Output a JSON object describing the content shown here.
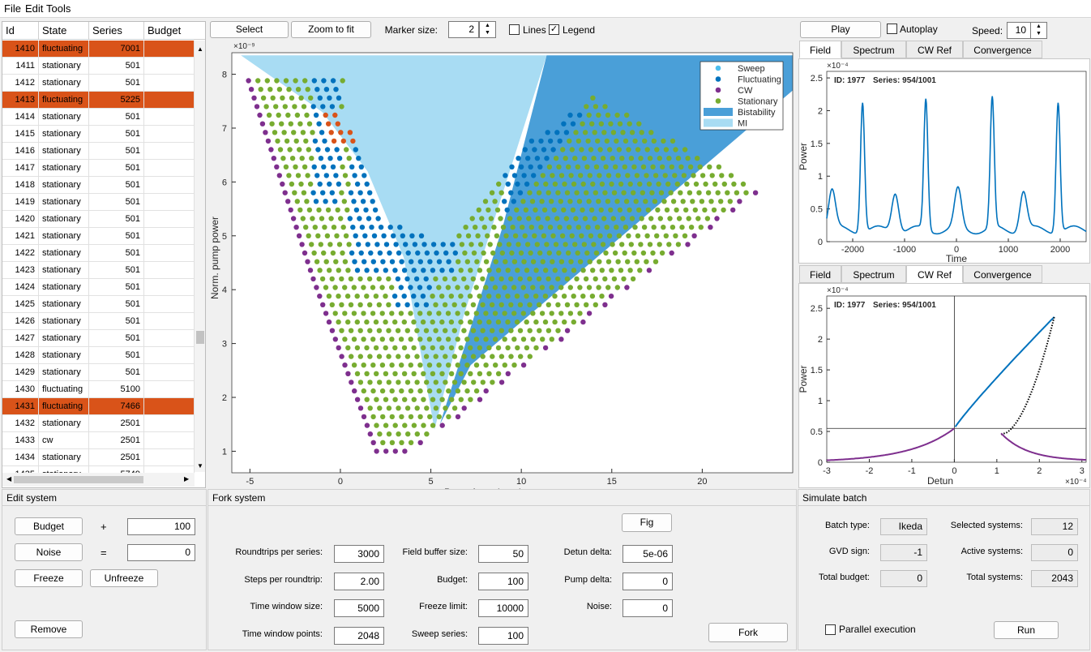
{
  "menu": [
    "File",
    "Edit",
    "Tools"
  ],
  "table": {
    "columns": [
      "Id",
      "State",
      "Series",
      "Budget"
    ],
    "rows": [
      {
        "id": "1410",
        "state": "fluctuating",
        "series": "7001",
        "highlight": true
      },
      {
        "id": "1411",
        "state": "stationary",
        "series": "501",
        "highlight": false
      },
      {
        "id": "1412",
        "state": "stationary",
        "series": "501",
        "highlight": false
      },
      {
        "id": "1413",
        "state": "fluctuating",
        "series": "5225",
        "highlight": true
      },
      {
        "id": "1414",
        "state": "stationary",
        "series": "501",
        "highlight": false
      },
      {
        "id": "1415",
        "state": "stationary",
        "series": "501",
        "highlight": false
      },
      {
        "id": "1416",
        "state": "stationary",
        "series": "501",
        "highlight": false
      },
      {
        "id": "1417",
        "state": "stationary",
        "series": "501",
        "highlight": false
      },
      {
        "id": "1418",
        "state": "stationary",
        "series": "501",
        "highlight": false
      },
      {
        "id": "1419",
        "state": "stationary",
        "series": "501",
        "highlight": false
      },
      {
        "id": "1420",
        "state": "stationary",
        "series": "501",
        "highlight": false
      },
      {
        "id": "1421",
        "state": "stationary",
        "series": "501",
        "highlight": false
      },
      {
        "id": "1422",
        "state": "stationary",
        "series": "501",
        "highlight": false
      },
      {
        "id": "1423",
        "state": "stationary",
        "series": "501",
        "highlight": false
      },
      {
        "id": "1424",
        "state": "stationary",
        "series": "501",
        "highlight": false
      },
      {
        "id": "1425",
        "state": "stationary",
        "series": "501",
        "highlight": false
      },
      {
        "id": "1426",
        "state": "stationary",
        "series": "501",
        "highlight": false
      },
      {
        "id": "1427",
        "state": "stationary",
        "series": "501",
        "highlight": false
      },
      {
        "id": "1428",
        "state": "stationary",
        "series": "501",
        "highlight": false
      },
      {
        "id": "1429",
        "state": "stationary",
        "series": "501",
        "highlight": false
      },
      {
        "id": "1430",
        "state": "fluctuating",
        "series": "5100",
        "highlight": false
      },
      {
        "id": "1431",
        "state": "fluctuating",
        "series": "7466",
        "highlight": true
      },
      {
        "id": "1432",
        "state": "stationary",
        "series": "2501",
        "highlight": false
      },
      {
        "id": "1433",
        "state": "cw",
        "series": "2501",
        "highlight": false
      },
      {
        "id": "1434",
        "state": "stationary",
        "series": "2501",
        "highlight": false
      },
      {
        "id": "1435",
        "state": "stationary",
        "series": "5749",
        "highlight": false
      }
    ]
  },
  "toolbar": {
    "select": "Select",
    "zoom_to_fit": "Zoom to fit",
    "marker_size_label": "Marker size:",
    "marker_size": "2",
    "lines_label": "Lines",
    "lines_checked": false,
    "legend_label": "Legend",
    "legend_checked": true
  },
  "playbar": {
    "play": "Play",
    "autoplay_label": "Autoplay",
    "autoplay_checked": false,
    "speed_label": "Speed:",
    "speed": "10"
  },
  "tabs_top": [
    "Field",
    "Spectrum",
    "CW Ref",
    "Convergence"
  ],
  "tabs_top_active": "Field",
  "tabs_bottom": [
    "Field",
    "Spectrum",
    "CW Ref",
    "Convergence"
  ],
  "tabs_bottom_active": "CW Ref",
  "colors": {
    "highlight": "#d95319",
    "sweep": "#4dbeee",
    "fluctuating": "#0072bd",
    "cw": "#7e2f8e",
    "stationary": "#77ac30",
    "bistability": "#4a9fd8",
    "mi": "#a8dcf3",
    "line": "#0072bd",
    "cw_curve": "#7e2f8e"
  },
  "chart_data": [
    {
      "type": "scatter",
      "xlabel": "Pump freq. detuning",
      "ylabel": "Norm. pump power",
      "x_exponent": "×10⁻⁵",
      "y_exponent": "×10⁻⁹",
      "xlim": [
        -6,
        25
      ],
      "ylim": [
        0.6,
        8.4
      ],
      "xticks": [
        -5,
        0,
        5,
        10,
        15,
        20
      ],
      "yticks": [
        1,
        2,
        3,
        4,
        5,
        6,
        7,
        8
      ],
      "legend_position": "top-right",
      "legend": [
        "Sweep",
        "Fluctuating",
        "CW",
        "Stationary",
        "Bistability",
        "MI"
      ],
      "regions": {
        "mi": [
          [
            -5.5,
            8.35
          ],
          [
            11.4,
            8.35
          ],
          [
            6.8,
            3.5
          ],
          [
            5.2,
            1.4
          ],
          [
            3.5,
            4.6
          ],
          [
            1.5,
            6.2
          ],
          [
            -1,
            7.3
          ],
          [
            -5.5,
            8.35
          ]
        ],
        "bistability": [
          [
            11.4,
            8.35
          ],
          [
            25,
            8.35
          ],
          [
            25,
            7.7
          ],
          [
            7.2,
            2.6
          ],
          [
            5.5,
            1.5
          ],
          [
            9.0,
            5.2
          ],
          [
            11.4,
            8.35
          ]
        ]
      },
      "series_summary": {
        "stationary_bounds": {
          "left_x": [
            -5,
            2
          ],
          "bottom_y": 1.0,
          "top_y": 7.9,
          "right_edge": [
            [
              2,
              1.0
            ],
            [
              23,
              5.9
            ]
          ]
        },
        "fluctuating_clusters": [
          {
            "x": [
              -1.5,
              0
            ],
            "y": [
              5.5,
              7.9
            ]
          },
          {
            "x": [
              0.5,
              6.5
            ],
            "y": [
              3.4,
              6.7
            ]
          },
          {
            "x": [
              9,
              14
            ],
            "y": [
              5.2,
              7.6
            ]
          }
        ],
        "cw_edge_left": [
          [
            -5,
            7.8
          ],
          [
            -1.5,
            4.2
          ],
          [
            2,
            1.0
          ]
        ],
        "cw_edge_right": [
          [
            4,
            1.0
          ],
          [
            23,
            5.8
          ]
        ],
        "highlight_points": [
          [
            -0.5,
            7.1
          ],
          [
            0,
            7.0
          ],
          [
            0.6,
            6.9
          ]
        ]
      }
    },
    {
      "type": "line",
      "id_label": "ID: 1977",
      "series_label": "Series: 954/1001",
      "xlabel": "Time",
      "ylabel": "Power",
      "y_exponent": "×10⁻⁴",
      "xlim": [
        -2500,
        2500
      ],
      "ylim": [
        0,
        2.6
      ],
      "xticks": [
        -2000,
        -1000,
        0,
        1000,
        2000
      ],
      "yticks": [
        0,
        0.5,
        1,
        1.5,
        2,
        2.5
      ],
      "peaks_tall": {
        "x": [
          -1810,
          -590,
          690,
          1960
        ],
        "height": 2.17
      },
      "peaks_small": {
        "x": [
          -2400,
          -1180,
          30,
          1290
        ],
        "height": 0.78
      },
      "baseline": 0.18
    },
    {
      "type": "line",
      "id_label": "ID: 1977",
      "series_label": "Series: 954/1001",
      "xlabel": "Detun",
      "ylabel": "Power",
      "y_exponent": "×10⁻⁴",
      "x_exponent": "×10⁻⁴",
      "xlim": [
        -3,
        3.1
      ],
      "ylim": [
        0,
        2.7
      ],
      "xticks": [
        -3,
        -2,
        -1,
        0,
        1,
        2,
        3
      ],
      "yticks": [
        0,
        0.5,
        1,
        1.5,
        2,
        2.5
      ],
      "crosshair": {
        "x": 0,
        "y": 0.55
      },
      "upper_branch_end": [
        2.35,
        2.36
      ],
      "turning_point": [
        1.1,
        0.45
      ]
    }
  ],
  "edit_system": {
    "title": "Edit system",
    "budget_btn": "Budget",
    "plus": "+",
    "budget_value": "100",
    "noise_btn": "Noise",
    "equals": "=",
    "noise_value": "0",
    "freeze_btn": "Freeze",
    "unfreeze_btn": "Unfreeze",
    "remove_btn": "Remove"
  },
  "fork_system": {
    "title": "Fork system",
    "fig_btn": "Fig",
    "fork_btn": "Fork",
    "fields": [
      {
        "label": "Roundtrips per series:",
        "value": "3000"
      },
      {
        "label": "Steps per roundtrip:",
        "value": "2.00"
      },
      {
        "label": "Time window size:",
        "value": "5000"
      },
      {
        "label": "Time window points:",
        "value": "2048"
      },
      {
        "label": "Field buffer size:",
        "value": "50"
      },
      {
        "label": "Budget:",
        "value": "100"
      },
      {
        "label": "Freeze limit:",
        "value": "10000"
      },
      {
        "label": "Sweep series:",
        "value": "100"
      },
      {
        "label": "Detun delta:",
        "value": "5e-06"
      },
      {
        "label": "Pump delta:",
        "value": "0"
      },
      {
        "label": "Noise:",
        "value": "0"
      }
    ]
  },
  "simulate_batch": {
    "title": "Simulate batch",
    "fields": [
      {
        "label": "Batch type:",
        "value": "Ikeda"
      },
      {
        "label": "GVD sign:",
        "value": "-1"
      },
      {
        "label": "Total budget:",
        "value": "0"
      },
      {
        "label": "Selected systems:",
        "value": "12"
      },
      {
        "label": "Active systems:",
        "value": "0"
      },
      {
        "label": "Total systems:",
        "value": "2043"
      }
    ],
    "parallel_label": "Parallel execution",
    "parallel_checked": false,
    "run_btn": "Run"
  }
}
